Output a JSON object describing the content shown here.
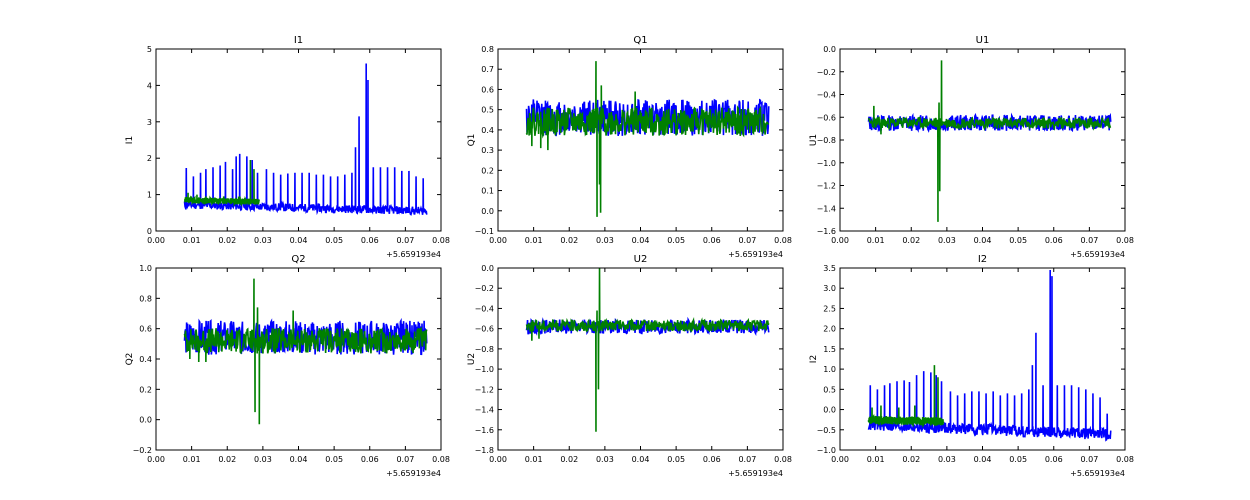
{
  "chart_data": [
    {
      "type": "line",
      "title": "I1",
      "xlabel": "",
      "ylabel": "I1",
      "x_offset_label": "+5.659193e4",
      "xlim": [
        0.0,
        0.08
      ],
      "ylim": [
        0,
        5
      ],
      "xticks": [
        "0.00",
        "0.01",
        "0.02",
        "0.03",
        "0.04",
        "0.05",
        "0.06",
        "0.07",
        "0.08"
      ],
      "yticks": [
        "0",
        "1",
        "2",
        "3",
        "4",
        "5"
      ],
      "series": [
        {
          "color": "#0000ff",
          "x_range": [
            0.008,
            0.076
          ],
          "base": [
            0.72,
            0.55
          ],
          "band": 0.16,
          "seed": 11,
          "spikes": [
            [
              0.0085,
              1.73
            ],
            [
              0.0105,
              1.5
            ],
            [
              0.0125,
              1.6
            ],
            [
              0.014,
              1.7
            ],
            [
              0.016,
              1.75
            ],
            [
              0.018,
              1.8
            ],
            [
              0.0195,
              1.9
            ],
            [
              0.0215,
              1.7
            ],
            [
              0.0225,
              2.05
            ],
            [
              0.0235,
              2.12
            ],
            [
              0.0255,
              2.05
            ],
            [
              0.027,
              1.95
            ],
            [
              0.0285,
              1.6
            ],
            [
              0.031,
              1.7
            ],
            [
              0.033,
              1.6
            ],
            [
              0.035,
              1.55
            ],
            [
              0.037,
              1.58
            ],
            [
              0.039,
              1.6
            ],
            [
              0.041,
              1.6
            ],
            [
              0.043,
              1.6
            ],
            [
              0.045,
              1.55
            ],
            [
              0.047,
              1.55
            ],
            [
              0.049,
              1.5
            ],
            [
              0.051,
              1.5
            ],
            [
              0.053,
              1.55
            ],
            [
              0.055,
              1.6
            ],
            [
              0.056,
              2.3
            ],
            [
              0.057,
              3.15
            ],
            [
              0.059,
              4.6
            ],
            [
              0.0595,
              4.15
            ],
            [
              0.061,
              1.75
            ],
            [
              0.063,
              1.75
            ],
            [
              0.065,
              1.75
            ],
            [
              0.067,
              1.75
            ],
            [
              0.069,
              1.65
            ],
            [
              0.071,
              1.65
            ],
            [
              0.073,
              1.5
            ],
            [
              0.075,
              1.45
            ]
          ]
        },
        {
          "color": "#008000",
          "x_range": [
            0.008,
            0.029
          ],
          "base": [
            0.85,
            0.8
          ],
          "band": 0.12,
          "seed": 21,
          "spikes": [
            [
              0.009,
              1.05
            ],
            [
              0.0115,
              1.0
            ],
            [
              0.014,
              0.95
            ],
            [
              0.0165,
              0.92
            ],
            [
              0.019,
              0.95
            ],
            [
              0.021,
              0.9
            ],
            [
              0.0235,
              0.95
            ],
            [
              0.0265,
              1.95
            ],
            [
              0.0275,
              1.7
            ]
          ]
        }
      ]
    },
    {
      "type": "line",
      "title": "Q1",
      "xlabel": "",
      "ylabel": "Q1",
      "x_offset_label": "+5.659193e4",
      "xlim": [
        0.0,
        0.08
      ],
      "ylim": [
        -0.1,
        0.8
      ],
      "xticks": [
        "0.00",
        "0.01",
        "0.02",
        "0.03",
        "0.04",
        "0.05",
        "0.06",
        "0.07",
        "0.08"
      ],
      "yticks": [
        "−0.1",
        "0.0",
        "0.1",
        "0.2",
        "0.3",
        "0.4",
        "0.5",
        "0.6",
        "0.7",
        "0.8"
      ],
      "series": [
        {
          "color": "#0000ff",
          "x_range": [
            0.008,
            0.076
          ],
          "base": [
            0.46,
            0.46
          ],
          "band": 0.13,
          "seed": 12,
          "spikes": []
        },
        {
          "color": "#008000",
          "x_range": [
            0.008,
            0.076
          ],
          "base": [
            0.44,
            0.44
          ],
          "band": 0.1,
          "seed": 22,
          "spikes": [
            [
              0.0095,
              0.32
            ],
            [
              0.012,
              0.31
            ],
            [
              0.014,
              0.3
            ],
            [
              0.0275,
              0.74
            ],
            [
              0.0278,
              -0.03
            ],
            [
              0.029,
              0.62
            ],
            [
              0.0288,
              -0.01
            ],
            [
              0.0285,
              0.13
            ],
            [
              0.0385,
              0.59
            ],
            [
              0.068,
              0.37
            ]
          ]
        }
      ]
    },
    {
      "type": "line",
      "title": "U1",
      "xlabel": "",
      "ylabel": "U1",
      "x_offset_label": "+5.659193e4",
      "xlim": [
        0.0,
        0.08
      ],
      "ylim": [
        -1.6,
        0.0
      ],
      "xticks": [
        "0.00",
        "0.01",
        "0.02",
        "0.03",
        "0.04",
        "0.05",
        "0.06",
        "0.07",
        "0.08"
      ],
      "yticks": [
        "−1.6",
        "−1.4",
        "−1.2",
        "−1.0",
        "−0.8",
        "−0.6",
        "−0.4",
        "−0.2",
        "0.0"
      ],
      "series": [
        {
          "color": "#0000ff",
          "x_range": [
            0.008,
            0.076
          ],
          "base": [
            -0.65,
            -0.65
          ],
          "band": 0.1,
          "seed": 13,
          "spikes": []
        },
        {
          "color": "#008000",
          "x_range": [
            0.008,
            0.076
          ],
          "base": [
            -0.65,
            -0.65
          ],
          "band": 0.07,
          "seed": 23,
          "spikes": [
            [
              0.0095,
              -0.5
            ],
            [
              0.0115,
              -0.75
            ],
            [
              0.0275,
              -1.52
            ],
            [
              0.0278,
              -0.47
            ],
            [
              0.0285,
              -0.1
            ],
            [
              0.028,
              -1.25
            ]
          ]
        }
      ]
    },
    {
      "type": "line",
      "title": "Q2",
      "xlabel": "",
      "ylabel": "Q2",
      "x_offset_label": "+5.659193e4",
      "xlim": [
        0.0,
        0.08
      ],
      "ylim": [
        -0.2,
        1.0
      ],
      "xticks": [
        "0.00",
        "0.01",
        "0.02",
        "0.03",
        "0.04",
        "0.05",
        "0.06",
        "0.07",
        "0.08"
      ],
      "yticks": [
        "−0.2",
        "0.0",
        "0.2",
        "0.4",
        "0.6",
        "0.8",
        "1.0"
      ],
      "series": [
        {
          "color": "#0000ff",
          "x_range": [
            0.008,
            0.076
          ],
          "base": [
            0.54,
            0.54
          ],
          "band": 0.16,
          "seed": 14,
          "spikes": []
        },
        {
          "color": "#008000",
          "x_range": [
            0.008,
            0.076
          ],
          "base": [
            0.52,
            0.52
          ],
          "band": 0.12,
          "seed": 24,
          "spikes": [
            [
              0.0095,
              0.4
            ],
            [
              0.012,
              0.38
            ],
            [
              0.014,
              0.38
            ],
            [
              0.0275,
              0.93
            ],
            [
              0.0278,
              0.05
            ],
            [
              0.0285,
              0.74
            ],
            [
              0.029,
              -0.03
            ],
            [
              0.0385,
              0.72
            ]
          ]
        }
      ]
    },
    {
      "type": "line",
      "title": "U2",
      "xlabel": "",
      "ylabel": "U2",
      "x_offset_label": "+5.659193e4",
      "xlim": [
        0.0,
        0.08
      ],
      "ylim": [
        -1.8,
        0.0
      ],
      "xticks": [
        "0.00",
        "0.01",
        "0.02",
        "0.03",
        "0.04",
        "0.05",
        "0.06",
        "0.07",
        "0.08"
      ],
      "yticks": [
        "−1.8",
        "−1.6",
        "−1.4",
        "−1.2",
        "−1.0",
        "−0.8",
        "−0.6",
        "−0.4",
        "−0.2",
        "0.0"
      ],
      "series": [
        {
          "color": "#0000ff",
          "x_range": [
            0.008,
            0.076
          ],
          "base": [
            -0.58,
            -0.58
          ],
          "band": 0.1,
          "seed": 15,
          "spikes": []
        },
        {
          "color": "#008000",
          "x_range": [
            0.008,
            0.076
          ],
          "base": [
            -0.57,
            -0.57
          ],
          "band": 0.08,
          "seed": 25,
          "spikes": [
            [
              0.0095,
              -0.72
            ],
            [
              0.0115,
              -0.7
            ],
            [
              0.0275,
              -1.62
            ],
            [
              0.0278,
              -0.42
            ],
            [
              0.0285,
              0.0
            ],
            [
              0.0282,
              -1.2
            ]
          ]
        }
      ]
    },
    {
      "type": "line",
      "title": "I2",
      "xlabel": "",
      "ylabel": "I2",
      "x_offset_label": "+5.659193e4",
      "xlim": [
        0.0,
        0.08
      ],
      "ylim": [
        -1.0,
        3.5
      ],
      "xticks": [
        "0.00",
        "0.01",
        "0.02",
        "0.03",
        "0.04",
        "0.05",
        "0.06",
        "0.07",
        "0.08"
      ],
      "yticks": [
        "−1.0",
        "−0.5",
        "0.0",
        "0.5",
        "1.0",
        "1.5",
        "2.0",
        "2.5",
        "3.0",
        "3.5"
      ],
      "series": [
        {
          "color": "#0000ff",
          "x_range": [
            0.008,
            0.076
          ],
          "base": [
            -0.38,
            -0.62
          ],
          "band": 0.2,
          "seed": 16,
          "spikes": [
            [
              0.0085,
              0.6
            ],
            [
              0.0105,
              0.5
            ],
            [
              0.0125,
              0.6
            ],
            [
              0.014,
              0.65
            ],
            [
              0.016,
              0.7
            ],
            [
              0.018,
              0.72
            ],
            [
              0.0195,
              0.68
            ],
            [
              0.0215,
              0.85
            ],
            [
              0.0235,
              0.95
            ],
            [
              0.0255,
              0.92
            ],
            [
              0.027,
              0.85
            ],
            [
              0.0285,
              0.7
            ],
            [
              0.031,
              0.45
            ],
            [
              0.033,
              0.35
            ],
            [
              0.035,
              0.4
            ],
            [
              0.037,
              0.45
            ],
            [
              0.039,
              0.45
            ],
            [
              0.041,
              0.4
            ],
            [
              0.043,
              0.45
            ],
            [
              0.045,
              0.35
            ],
            [
              0.047,
              0.4
            ],
            [
              0.049,
              0.35
            ],
            [
              0.051,
              0.4
            ],
            [
              0.053,
              0.5
            ],
            [
              0.054,
              1.1
            ],
            [
              0.055,
              1.9
            ],
            [
              0.057,
              0.6
            ],
            [
              0.059,
              3.45
            ],
            [
              0.0595,
              3.3
            ],
            [
              0.061,
              0.6
            ],
            [
              0.063,
              0.6
            ],
            [
              0.065,
              0.6
            ],
            [
              0.067,
              0.55
            ],
            [
              0.069,
              0.5
            ],
            [
              0.071,
              0.4
            ],
            [
              0.073,
              0.3
            ],
            [
              0.075,
              -0.1
            ]
          ]
        },
        {
          "color": "#008000",
          "x_range": [
            0.008,
            0.029
          ],
          "base": [
            -0.25,
            -0.3
          ],
          "band": 0.15,
          "seed": 26,
          "spikes": [
            [
              0.009,
              0.05
            ],
            [
              0.0115,
              0.1
            ],
            [
              0.0165,
              0.05
            ],
            [
              0.021,
              0.1
            ],
            [
              0.0265,
              1.1
            ],
            [
              0.0275,
              0.8
            ]
          ]
        }
      ]
    }
  ]
}
